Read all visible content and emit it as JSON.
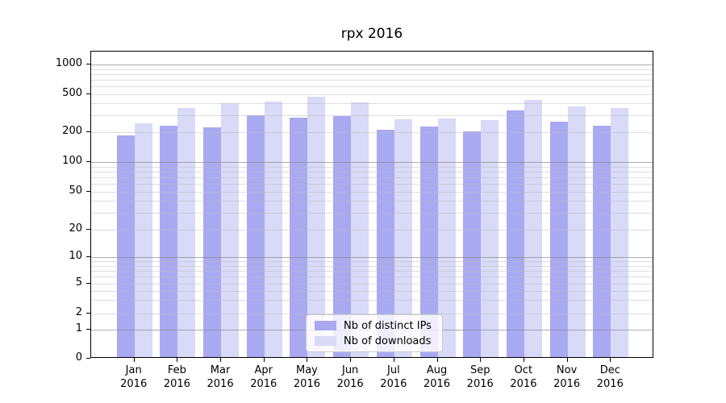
{
  "title": "rpx 2016",
  "colors": {
    "distinct_ips": "#a9a9f2",
    "downloads": "#d9d9f8",
    "major_grid": "#b0b0b0",
    "minor_grid": "#e7e7e7",
    "axis": "#000000"
  },
  "legend": {
    "items": [
      {
        "label": "Nb of distinct IPs",
        "color_key": "distinct_ips"
      },
      {
        "label": "Nb of downloads",
        "color_key": "downloads"
      }
    ]
  },
  "y_axis": {
    "tick_labels": [
      "1000",
      "500",
      "200",
      "100",
      "50",
      "20",
      "10",
      "5",
      "2",
      "1",
      "0"
    ]
  },
  "x_axis": {
    "months": [
      {
        "label": "Jan",
        "year": "2016"
      },
      {
        "label": "Feb",
        "year": "2016"
      },
      {
        "label": "Mar",
        "year": "2016"
      },
      {
        "label": "Apr",
        "year": "2016"
      },
      {
        "label": "May",
        "year": "2016"
      },
      {
        "label": "Jun",
        "year": "2016"
      },
      {
        "label": "Jul",
        "year": "2016"
      },
      {
        "label": "Aug",
        "year": "2016"
      },
      {
        "label": "Sep",
        "year": "2016"
      },
      {
        "label": "Oct",
        "year": "2016"
      },
      {
        "label": "Nov",
        "year": "2016"
      },
      {
        "label": "Dec",
        "year": "2016"
      }
    ]
  },
  "chart_data": {
    "type": "bar",
    "title": "rpx 2016",
    "categories": [
      "Jan 2016",
      "Feb 2016",
      "Mar 2016",
      "Apr 2016",
      "May 2016",
      "Jun 2016",
      "Jul 2016",
      "Aug 2016",
      "Sep 2016",
      "Oct 2016",
      "Nov 2016",
      "Dec 2016"
    ],
    "series": [
      {
        "name": "Nb of distinct IPs",
        "values": [
          180,
          225,
          215,
          290,
          275,
          285,
          205,
          220,
          195,
          325,
          250,
          225
        ]
      },
      {
        "name": "Nb of downloads",
        "values": [
          240,
          345,
          390,
          400,
          450,
          395,
          265,
          270,
          260,
          420,
          360,
          345
        ]
      }
    ],
    "xlabel": "",
    "ylabel": "",
    "yscale": "symlog",
    "y_ticks": [
      1000,
      500,
      200,
      100,
      50,
      20,
      10,
      5,
      2,
      1,
      0
    ],
    "ylim": [
      0,
      1350
    ],
    "grid": true,
    "legend_position": "lower center"
  }
}
